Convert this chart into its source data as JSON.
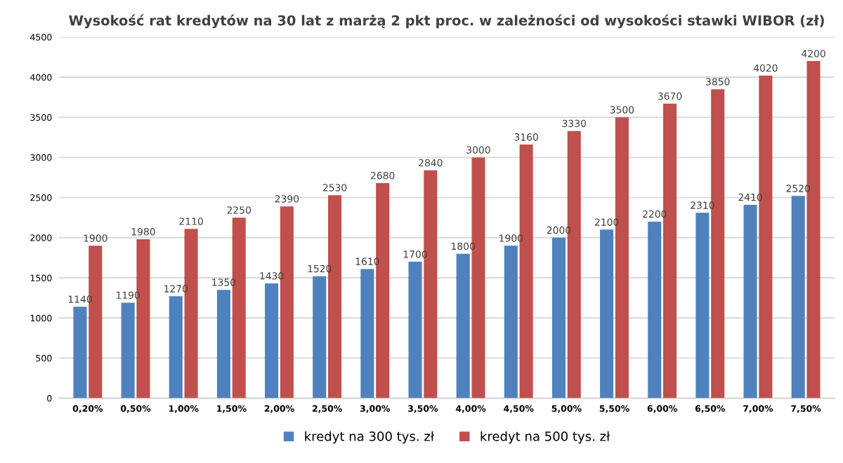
{
  "chart_data": {
    "type": "bar",
    "title": "Wysokość rat kredytów na 30 lat z marżą 2 pkt proc. w zależności od wysokości stawki WIBOR (zł)",
    "categories": [
      "0,20%",
      "0,50%",
      "1,00%",
      "1,50%",
      "2,00%",
      "2,50%",
      "3,00%",
      "3,50%",
      "4,00%",
      "4,50%",
      "5,00%",
      "5,50%",
      "6,00%",
      "6,50%",
      "7,00%",
      "7,50%"
    ],
    "series": [
      {
        "name": "kredyt na 300 tys. zł",
        "color": "#4f81bd",
        "values": [
          1140,
          1190,
          1270,
          1350,
          1430,
          1520,
          1610,
          1700,
          1800,
          1900,
          2000,
          2100,
          2200,
          2310,
          2410,
          2520
        ]
      },
      {
        "name": "kredyt na 500 tys. zł",
        "color": "#c0504d",
        "values": [
          1900,
          1980,
          2110,
          2250,
          2390,
          2530,
          2680,
          2840,
          3000,
          3160,
          3330,
          3500,
          3670,
          3850,
          4020,
          4200
        ]
      }
    ],
    "ylim": [
      0,
      4500
    ],
    "yticks": [
      0,
      500,
      1000,
      1500,
      2000,
      2500,
      3000,
      3500,
      4000,
      4500
    ],
    "grid": "y",
    "legend": "bottom",
    "data_labels": true
  }
}
